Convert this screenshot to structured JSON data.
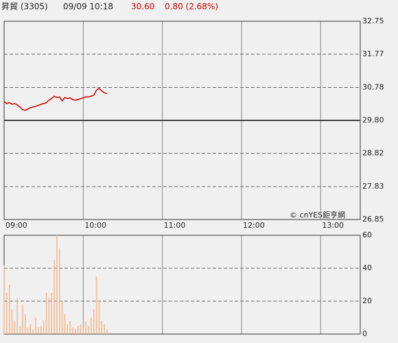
{
  "header": {
    "name": "昇貿 (3305)",
    "time": "09/09 10:18",
    "price": "30.60",
    "change": "0.80 (2.68%)"
  },
  "watermark": "© cnYES鉅亨網",
  "chart_data": [
    {
      "type": "line",
      "x": [
        "09:00",
        "09:02",
        "09:04",
        "09:06",
        "09:08",
        "09:10",
        "09:12",
        "09:14",
        "09:16",
        "09:18",
        "09:20",
        "09:22",
        "09:24",
        "09:26",
        "09:28",
        "09:30",
        "09:32",
        "09:34",
        "09:36",
        "09:38",
        "09:40",
        "09:42",
        "09:44",
        "09:46",
        "09:48",
        "09:50",
        "09:52",
        "09:54",
        "09:56",
        "09:58",
        "10:00",
        "10:02",
        "10:04",
        "10:06",
        "10:08",
        "10:10",
        "10:12",
        "10:14",
        "10:16",
        "10:18"
      ],
      "series": [
        {
          "color": "#cc0000",
          "values": [
            30.36,
            30.3,
            30.33,
            30.28,
            30.3,
            30.26,
            30.2,
            30.12,
            30.1,
            30.14,
            30.18,
            30.2,
            30.22,
            30.25,
            30.28,
            30.3,
            30.33,
            30.4,
            30.45,
            30.52,
            30.48,
            30.5,
            30.38,
            30.48,
            30.45,
            30.47,
            30.42,
            30.4,
            30.42,
            30.45,
            30.47,
            30.5,
            30.5,
            30.52,
            30.55,
            30.7,
            30.75,
            30.68,
            30.62,
            30.6
          ]
        }
      ],
      "xlim": [
        "09:00",
        "13:30"
      ],
      "xticks": [
        "09:00",
        "10:00",
        "11:00",
        "12:00",
        "13:00"
      ],
      "ylim": [
        26.85,
        32.75
      ],
      "yticks": [
        32.75,
        31.77,
        30.78,
        {
          "value": 29.8,
          "label": "29.80"
        },
        28.82,
        27.83,
        26.85
      ],
      "baseline": 29.8,
      "grid": true
    },
    {
      "type": "bar",
      "x": [
        "09:00",
        "09:02",
        "09:04",
        "09:06",
        "09:08",
        "09:10",
        "09:12",
        "09:14",
        "09:16",
        "09:18",
        "09:20",
        "09:22",
        "09:24",
        "09:26",
        "09:28",
        "09:30",
        "09:32",
        "09:34",
        "09:36",
        "09:38",
        "09:40",
        "09:42",
        "09:44",
        "09:46",
        "09:48",
        "09:50",
        "09:52",
        "09:54",
        "09:56",
        "09:58",
        "10:00",
        "10:02",
        "10:04",
        "10:06",
        "10:08",
        "10:10",
        "10:12",
        "10:14",
        "10:16",
        "10:18"
      ],
      "values": [
        42,
        25,
        30,
        15,
        8,
        22,
        5,
        18,
        12,
        4,
        6,
        3,
        10,
        4,
        5,
        8,
        25,
        22,
        25,
        45,
        60,
        52,
        20,
        12,
        6,
        8,
        4,
        3,
        5,
        6,
        4,
        8,
        5,
        10,
        15,
        35,
        20,
        8,
        6,
        3
      ],
      "color": "#f5b58a",
      "xlim": [
        "09:00",
        "13:30"
      ],
      "xticks": [
        "09:00",
        "10:00",
        "11:00",
        "12:00",
        "13:00"
      ],
      "ylim": [
        0,
        60
      ],
      "yticks": [
        0,
        20,
        40,
        60
      ],
      "grid": true
    }
  ]
}
